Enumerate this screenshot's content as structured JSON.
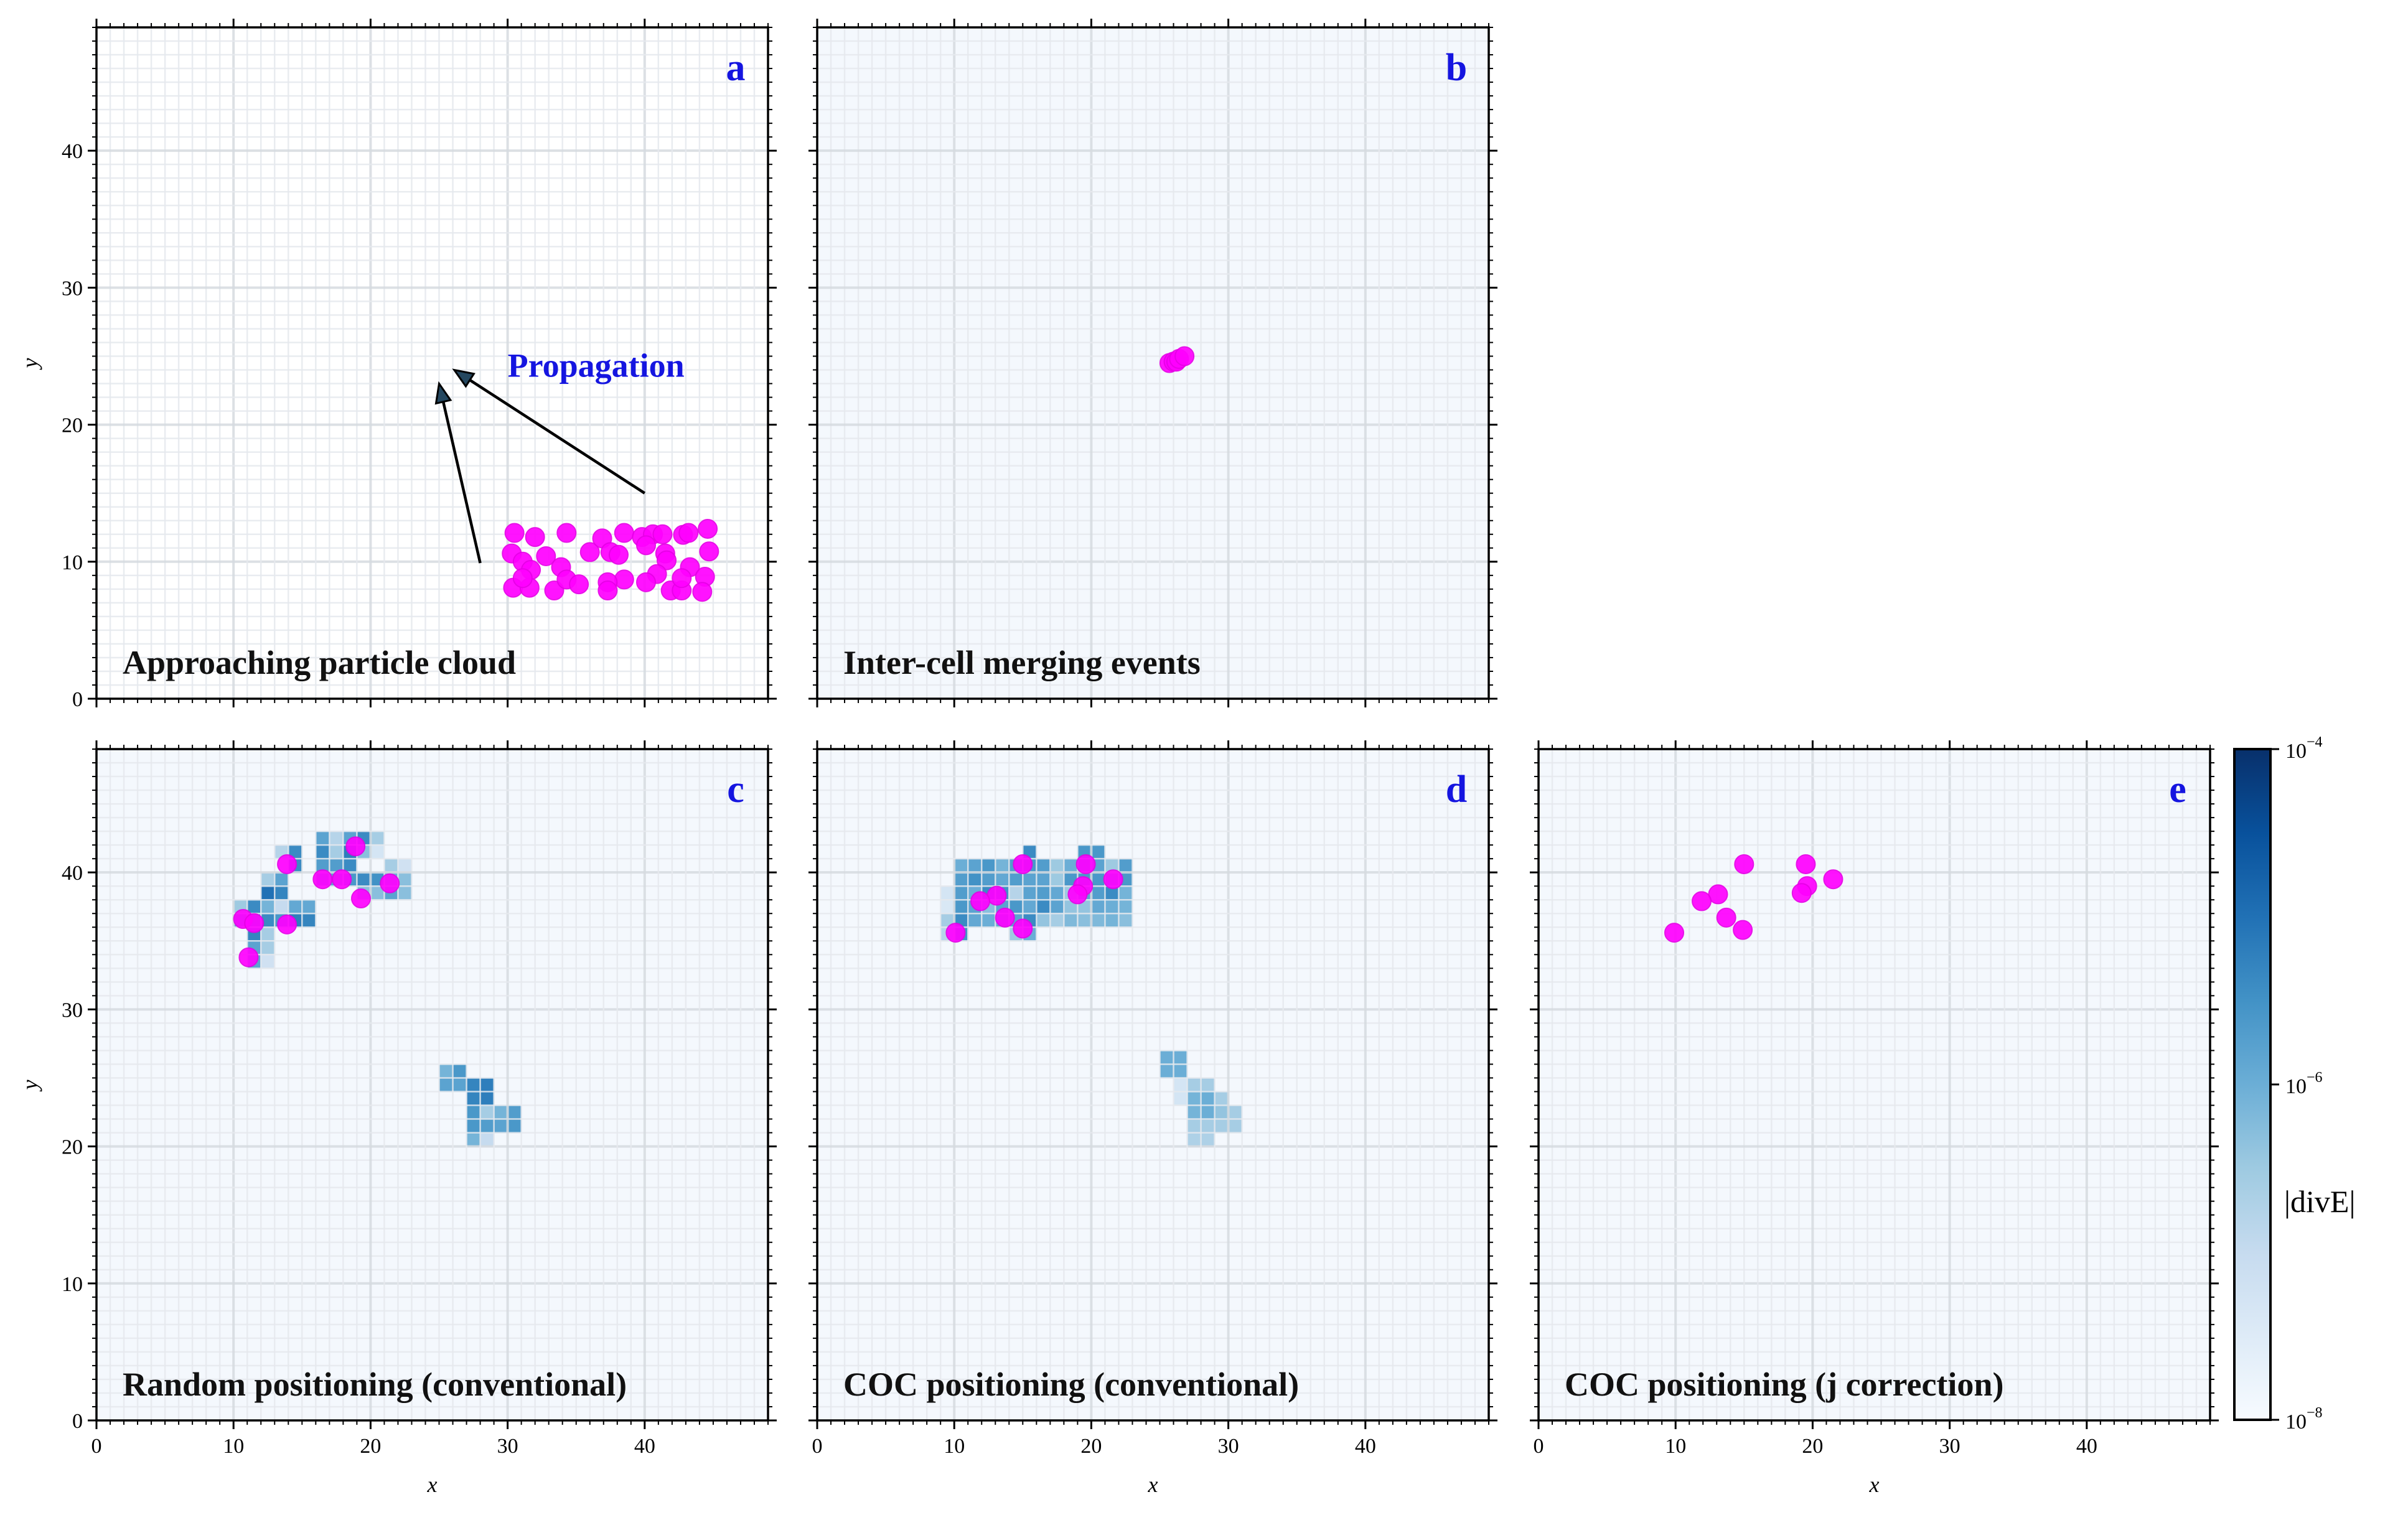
{
  "colors": {
    "particle": "#ff00ff",
    "letter": "#1515e0",
    "background_cell": "#f4f8fd",
    "arrow_head": "#24475f"
  },
  "chart_data": {
    "type": "heatmap",
    "title": "",
    "cell_size": 1,
    "xlim": [
      0,
      49
    ],
    "ylim": [
      0,
      49
    ],
    "xticks": [
      "0",
      "10",
      "20",
      "30",
      "40"
    ],
    "yticks": [
      "0",
      "10",
      "20",
      "30",
      "40"
    ],
    "xlabel": "x",
    "ylabel": "y",
    "colorbar": {
      "label": "|divE|",
      "scale": "log",
      "range_log10": [
        -8,
        -4
      ],
      "ticks": [
        "10",
        "10",
        "10"
      ],
      "tick_exponents": [
        "−4",
        "−6",
        "−8"
      ],
      "tick_values_log10": [
        -4,
        -6,
        -8
      ],
      "colormap": "Blues"
    },
    "panels": [
      {
        "id": "a",
        "letter": "a",
        "label": "Approaching particle cloud",
        "background": "white",
        "annotation": {
          "text": "Propagation",
          "x": 30,
          "y": 23.5
        },
        "arrows": [
          {
            "from": [
              28.0,
              9.9
            ],
            "to": [
              25.0,
              23.0
            ]
          },
          {
            "from": [
              40.0,
              15.0
            ],
            "to": [
              26.1,
              24.0
            ]
          }
        ],
        "particles": [
          [
            30.5,
            12.1
          ],
          [
            32.0,
            11.8
          ],
          [
            34.3,
            12.1
          ],
          [
            30.3,
            10.6
          ],
          [
            32.8,
            10.4
          ],
          [
            31.1,
            10.0
          ],
          [
            31.7,
            9.4
          ],
          [
            33.9,
            9.6
          ],
          [
            30.4,
            8.1
          ],
          [
            31.6,
            8.1
          ],
          [
            33.4,
            7.9
          ],
          [
            34.3,
            8.7
          ],
          [
            35.2,
            8.35
          ],
          [
            31.1,
            8.8
          ],
          [
            36.0,
            10.7
          ],
          [
            36.9,
            11.7
          ],
          [
            37.5,
            10.7
          ],
          [
            38.1,
            10.5
          ],
          [
            38.5,
            12.1
          ],
          [
            39.8,
            11.8
          ],
          [
            40.6,
            12.0
          ],
          [
            41.3,
            12.0
          ],
          [
            42.8,
            11.96
          ],
          [
            43.2,
            12.1
          ],
          [
            44.6,
            12.4
          ],
          [
            40.1,
            11.2
          ],
          [
            41.5,
            10.6
          ],
          [
            41.6,
            10.1
          ],
          [
            44.7,
            10.75
          ],
          [
            40.9,
            9.1
          ],
          [
            40.1,
            8.5
          ],
          [
            38.5,
            8.7
          ],
          [
            37.3,
            8.5
          ],
          [
            37.3,
            7.9
          ],
          [
            43.3,
            9.6
          ],
          [
            44.4,
            8.9
          ],
          [
            41.9,
            7.9
          ],
          [
            42.7,
            7.9
          ],
          [
            44.2,
            7.8
          ],
          [
            42.7,
            8.8
          ]
        ],
        "cells": []
      },
      {
        "id": "b",
        "letter": "b",
        "label": "Inter-cell merging events",
        "background": "faint",
        "particles": [
          [
            25.7,
            24.5
          ],
          [
            26.0,
            24.6
          ],
          [
            26.2,
            24.6
          ],
          [
            26.4,
            24.8
          ],
          [
            26.8,
            25.0
          ]
        ],
        "cells": []
      },
      {
        "id": "c",
        "letter": "c",
        "label": "Random positioning (conventional)",
        "background": "faint",
        "particles": [
          [
            18.9,
            41.9
          ],
          [
            13.9,
            40.6
          ],
          [
            16.5,
            39.5
          ],
          [
            17.9,
            39.5
          ],
          [
            21.4,
            39.2
          ],
          [
            19.3,
            38.1
          ],
          [
            10.7,
            36.6
          ],
          [
            11.5,
            36.3
          ],
          [
            13.9,
            36.2
          ],
          [
            11.1,
            33.8
          ]
        ],
        "cells": [
          [
            16,
            42,
            -5.8
          ],
          [
            17,
            42,
            -6.8
          ],
          [
            18,
            42,
            -5.8
          ],
          [
            19,
            42,
            -5.4
          ],
          [
            20,
            42,
            -6.6
          ],
          [
            13,
            41,
            -6.8
          ],
          [
            14,
            41,
            -5.4
          ],
          [
            16,
            41,
            -5.4
          ],
          [
            17,
            41,
            -6.6
          ],
          [
            18,
            41,
            -5.2
          ],
          [
            19,
            41,
            -6.3
          ],
          [
            20,
            41,
            -7.3
          ],
          [
            14,
            40,
            -5.4
          ],
          [
            16,
            40,
            -5.7
          ],
          [
            17,
            40,
            -5.7
          ],
          [
            18,
            40,
            -5.4
          ],
          [
            21,
            40,
            -6.6
          ],
          [
            22,
            40,
            -7.2
          ],
          [
            12,
            39,
            -6.6
          ],
          [
            13,
            39,
            -5.8
          ],
          [
            16,
            39,
            -5.8
          ],
          [
            17,
            39,
            -5.8
          ],
          [
            18,
            39,
            -5.6
          ],
          [
            19,
            39,
            -5.4
          ],
          [
            20,
            39,
            -5.5
          ],
          [
            21,
            39,
            -6.0
          ],
          [
            22,
            39,
            -6.3
          ],
          [
            12,
            38,
            -5.0
          ],
          [
            13,
            38,
            -5.3
          ],
          [
            19,
            38,
            -6.3
          ],
          [
            20,
            38,
            -6.3
          ],
          [
            21,
            38,
            -5.8
          ],
          [
            22,
            38,
            -6.3
          ],
          [
            10,
            37,
            -6.5
          ],
          [
            11,
            37,
            -5.4
          ],
          [
            12,
            37,
            -6.1
          ],
          [
            13,
            37,
            -7.0
          ],
          [
            14,
            37,
            -5.9
          ],
          [
            15,
            37,
            -5.9
          ],
          [
            10,
            36,
            -5.8
          ],
          [
            11,
            36,
            -5.6
          ],
          [
            12,
            36,
            -5.4
          ],
          [
            13,
            36,
            -5.6
          ],
          [
            14,
            36,
            -5.2
          ],
          [
            15,
            36,
            -5.3
          ],
          [
            11,
            35,
            -5.3
          ],
          [
            12,
            35,
            -6.6
          ],
          [
            11,
            34,
            -5.8
          ],
          [
            12,
            34,
            -6.6
          ],
          [
            11,
            33,
            -5.8
          ],
          [
            12,
            33,
            -7.2
          ],
          [
            25,
            25,
            -6.1
          ],
          [
            26,
            25,
            -5.6
          ],
          [
            25,
            24,
            -5.8
          ],
          [
            26,
            24,
            -5.8
          ],
          [
            27,
            24,
            -5.3
          ],
          [
            28,
            24,
            -5.2
          ],
          [
            27,
            23,
            -5.3
          ],
          [
            28,
            23,
            -5.2
          ],
          [
            27,
            22,
            -5.6
          ],
          [
            28,
            22,
            -6.6
          ],
          [
            29,
            22,
            -6.1
          ],
          [
            30,
            22,
            -5.7
          ],
          [
            27,
            21,
            -5.6
          ],
          [
            28,
            21,
            -5.7
          ],
          [
            29,
            21,
            -5.8
          ],
          [
            30,
            21,
            -5.6
          ],
          [
            27,
            20,
            -6.1
          ],
          [
            28,
            20,
            -7.0
          ]
        ]
      },
      {
        "id": "d",
        "letter": "d",
        "label": "COC positioning (conventional)",
        "background": "faint",
        "particles": [
          [
            15.0,
            40.6
          ],
          [
            19.6,
            40.6
          ],
          [
            21.6,
            39.5
          ],
          [
            19.4,
            39.0
          ],
          [
            19.0,
            38.4
          ],
          [
            13.1,
            38.3
          ],
          [
            11.9,
            37.9
          ],
          [
            13.7,
            36.7
          ],
          [
            15.0,
            35.9
          ],
          [
            10.1,
            35.6
          ]
        ],
        "cells": [
          [
            15,
            41,
            -5.4
          ],
          [
            19,
            41,
            -5.6
          ],
          [
            20,
            41,
            -5.6
          ],
          [
            10,
            40,
            -6.0
          ],
          [
            11,
            40,
            -5.8
          ],
          [
            12,
            40,
            -5.6
          ],
          [
            13,
            40,
            -6.1
          ],
          [
            14,
            40,
            -5.7
          ],
          [
            15,
            40,
            -5.6
          ],
          [
            16,
            40,
            -5.7
          ],
          [
            17,
            40,
            -6.5
          ],
          [
            18,
            40,
            -6.0
          ],
          [
            19,
            40,
            -5.7
          ],
          [
            20,
            40,
            -5.8
          ],
          [
            21,
            40,
            -6.5
          ],
          [
            22,
            40,
            -5.7
          ],
          [
            10,
            39,
            -5.7
          ],
          [
            11,
            39,
            -5.5
          ],
          [
            12,
            39,
            -5.7
          ],
          [
            13,
            39,
            -5.9
          ],
          [
            14,
            39,
            -5.7
          ],
          [
            15,
            39,
            -5.8
          ],
          [
            16,
            39,
            -5.8
          ],
          [
            17,
            39,
            -6.5
          ],
          [
            18,
            39,
            -5.6
          ],
          [
            19,
            39,
            -5.6
          ],
          [
            20,
            39,
            -5.6
          ],
          [
            21,
            39,
            -5.8
          ],
          [
            22,
            39,
            -5.6
          ],
          [
            9,
            38,
            -7.3
          ],
          [
            10,
            38,
            -5.7
          ],
          [
            11,
            38,
            -6.0
          ],
          [
            12,
            38,
            -5.4
          ],
          [
            13,
            38,
            -5.5
          ],
          [
            14,
            38,
            -6.8
          ],
          [
            15,
            38,
            -5.8
          ],
          [
            16,
            38,
            -5.7
          ],
          [
            17,
            38,
            -5.9
          ],
          [
            18,
            38,
            -6.5
          ],
          [
            19,
            38,
            -5.8
          ],
          [
            20,
            38,
            -5.7
          ],
          [
            21,
            38,
            -5.4
          ],
          [
            22,
            38,
            -6.1
          ],
          [
            9,
            37,
            -7.4
          ],
          [
            10,
            37,
            -5.6
          ],
          [
            11,
            37,
            -5.8
          ],
          [
            12,
            37,
            -6.3
          ],
          [
            13,
            37,
            -5.8
          ],
          [
            14,
            37,
            -5.6
          ],
          [
            15,
            37,
            -5.9
          ],
          [
            16,
            37,
            -5.4
          ],
          [
            17,
            37,
            -5.8
          ],
          [
            18,
            37,
            -6.4
          ],
          [
            19,
            37,
            -6.4
          ],
          [
            20,
            37,
            -5.9
          ],
          [
            21,
            37,
            -6.0
          ],
          [
            22,
            37,
            -6.1
          ],
          [
            9,
            36,
            -6.6
          ],
          [
            10,
            36,
            -5.4
          ],
          [
            11,
            36,
            -5.9
          ],
          [
            12,
            36,
            -6.0
          ],
          [
            13,
            36,
            -5.9
          ],
          [
            14,
            36,
            -5.8
          ],
          [
            15,
            36,
            -5.4
          ],
          [
            16,
            36,
            -6.4
          ],
          [
            17,
            36,
            -6.6
          ],
          [
            18,
            36,
            -6.2
          ],
          [
            19,
            36,
            -6.3
          ],
          [
            20,
            36,
            -6.2
          ],
          [
            21,
            36,
            -6.1
          ],
          [
            22,
            36,
            -6.3
          ],
          [
            9,
            35,
            -6.8
          ],
          [
            10,
            35,
            -5.5
          ],
          [
            14,
            35,
            -6.5
          ],
          [
            15,
            35,
            -6.0
          ],
          [
            25,
            26,
            -6.0
          ],
          [
            26,
            26,
            -6.0
          ],
          [
            25,
            25,
            -6.0
          ],
          [
            26,
            25,
            -6.0
          ],
          [
            26,
            24,
            -7.3
          ],
          [
            27,
            24,
            -6.6
          ],
          [
            28,
            24,
            -6.6
          ],
          [
            26,
            23,
            -7.3
          ],
          [
            27,
            23,
            -6.1
          ],
          [
            28,
            23,
            -6.0
          ],
          [
            29,
            23,
            -6.6
          ],
          [
            27,
            22,
            -6.1
          ],
          [
            28,
            22,
            -6.0
          ],
          [
            29,
            22,
            -6.4
          ],
          [
            30,
            22,
            -6.6
          ],
          [
            27,
            21,
            -6.6
          ],
          [
            28,
            21,
            -6.6
          ],
          [
            29,
            21,
            -6.6
          ],
          [
            30,
            21,
            -6.6
          ],
          [
            27,
            20,
            -6.7
          ],
          [
            28,
            20,
            -6.7
          ]
        ]
      },
      {
        "id": "e",
        "letter": "e",
        "label": "COC positioning (j correction)",
        "background": "faint",
        "particles": [
          [
            15.0,
            40.6
          ],
          [
            19.5,
            40.6
          ],
          [
            21.5,
            39.5
          ],
          [
            19.6,
            39.0
          ],
          [
            19.2,
            38.5
          ],
          [
            13.1,
            38.4
          ],
          [
            11.9,
            37.9
          ],
          [
            13.7,
            36.7
          ],
          [
            14.9,
            35.8
          ],
          [
            9.9,
            35.6
          ]
        ],
        "cells": []
      }
    ]
  }
}
